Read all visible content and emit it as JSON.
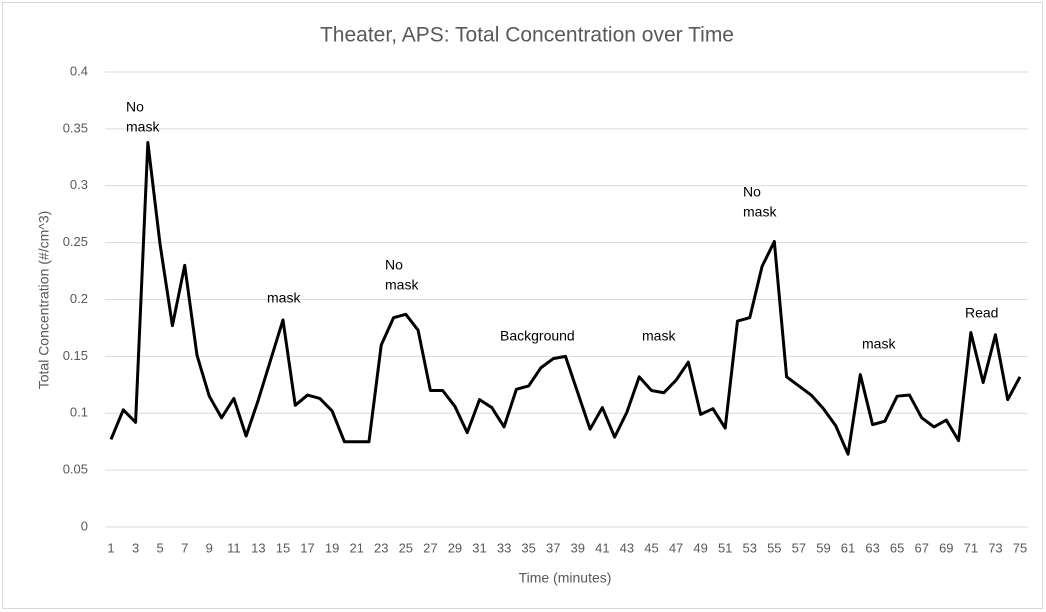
{
  "chart_data": {
    "type": "line",
    "title": "Theater, APS: Total Concentration over Time",
    "x_label": "Time (minutes)",
    "y_label": "Total Concentration (#/cm^3)",
    "categories": [
      1,
      null,
      3,
      null,
      5,
      null,
      7,
      null,
      9,
      null,
      11,
      null,
      13,
      null,
      15,
      null,
      17,
      null,
      19,
      null,
      21,
      null,
      23,
      null,
      25,
      null,
      27,
      null,
      29,
      null,
      31,
      null,
      33,
      null,
      35,
      null,
      37,
      null,
      39,
      null,
      41,
      null,
      43,
      null,
      45,
      null,
      47,
      null,
      49,
      null,
      51,
      null,
      53,
      null,
      55,
      null,
      57,
      null,
      59,
      null,
      61,
      null,
      63,
      null,
      65,
      null,
      67,
      null,
      69,
      null,
      71,
      null,
      73,
      null,
      75
    ],
    "series": [
      {
        "color": "#000000",
        "values": [
          0.077,
          0.103,
          0.092,
          0.338,
          0.248,
          0.177,
          0.23,
          0.151,
          0.115,
          0.096,
          0.113,
          0.08,
          0.112,
          0.147,
          0.182,
          0.107,
          0.116,
          0.113,
          0.102,
          0.075,
          0.075,
          0.075,
          0.16,
          0.184,
          0.187,
          0.173,
          0.12,
          0.12,
          0.106,
          0.083,
          0.112,
          0.105,
          0.088,
          0.121,
          0.124,
          0.14,
          0.148,
          0.15,
          0.118,
          0.086,
          0.105,
          0.079,
          0.101,
          0.132,
          0.12,
          0.118,
          0.129,
          0.145,
          0.099,
          0.104,
          0.087,
          0.181,
          0.184,
          0.229,
          0.251,
          0.132,
          0.124,
          0.116,
          0.104,
          0.089,
          0.064,
          0.134,
          0.09,
          0.093,
          0.115,
          0.116,
          0.096,
          0.088,
          0.094,
          0.076,
          0.171,
          0.127,
          0.169,
          0.112,
          0.132
        ]
      }
    ],
    "ylim": [
      0,
      0.4
    ],
    "yticks": [
      0,
      0.05,
      0.1,
      0.15,
      0.2,
      0.25,
      0.3,
      0.35,
      0.4
    ],
    "grid": true,
    "annotations": [
      {
        "lines": [
          "No",
          "mask"
        ]
      },
      {
        "lines": [
          "mask"
        ]
      },
      {
        "lines": [
          "No",
          "mask"
        ]
      },
      {
        "lines": [
          "Background"
        ]
      },
      {
        "lines": [
          "mask"
        ]
      },
      {
        "lines": [
          "No",
          "mask"
        ]
      },
      {
        "lines": [
          "mask"
        ]
      },
      {
        "lines": [
          "Read"
        ]
      }
    ]
  }
}
